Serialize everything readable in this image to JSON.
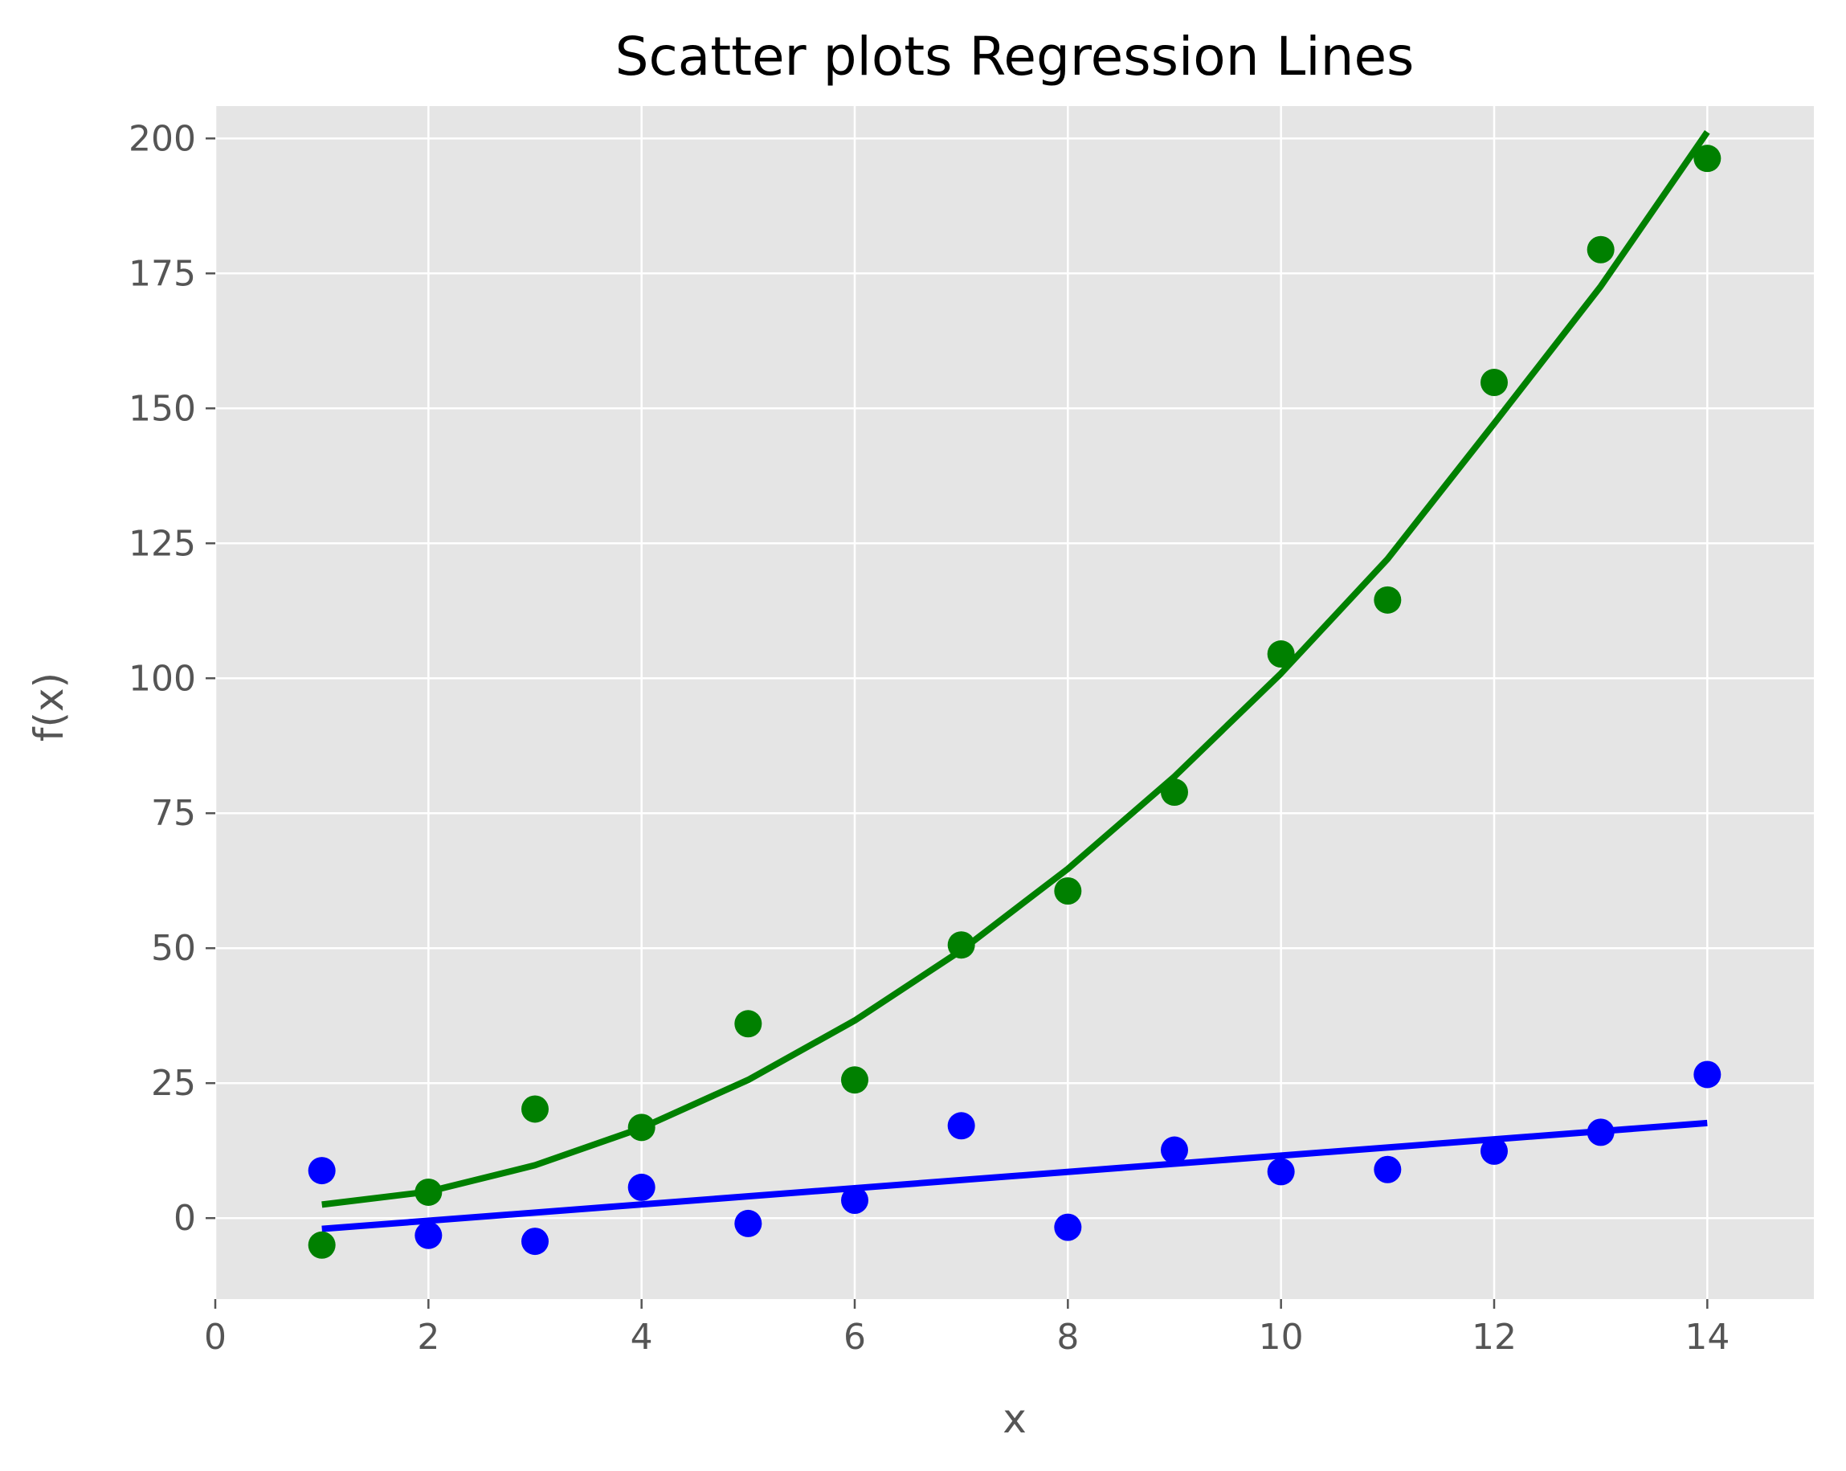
{
  "chart_data": {
    "type": "scatter",
    "title": "Scatter plots Regression Lines",
    "xlabel": "x",
    "ylabel": "f(x)",
    "xlim": [
      0,
      15
    ],
    "ylim": [
      -15,
      206
    ],
    "xticks": [
      0,
      2,
      4,
      6,
      8,
      10,
      12,
      14
    ],
    "yticks": [
      0,
      25,
      50,
      75,
      100,
      125,
      150,
      175,
      200
    ],
    "grid": true,
    "legend": "none",
    "colors": {
      "background": "#e5e5e5",
      "grid": "#ffffff",
      "green": "#008000",
      "blue": "#0000ff"
    },
    "series": [
      {
        "name": "green points",
        "kind": "scatter",
        "color": "#008000",
        "x": [
          1,
          2,
          3,
          4,
          5,
          6,
          7,
          8,
          9,
          10,
          11,
          12,
          13,
          14
        ],
        "y": [
          -5,
          4.8,
          20.2,
          16.8,
          36,
          25.6,
          50.6,
          60.6,
          78.9,
          104.5,
          114.5,
          154.8,
          179.4,
          196.3
        ]
      },
      {
        "name": "green regression",
        "kind": "line",
        "color": "#008000",
        "x": [
          1,
          2,
          3,
          4,
          5,
          6,
          7,
          8,
          9,
          10,
          11,
          12,
          13,
          14
        ],
        "y": [
          2.5,
          4.9,
          9.8,
          16.7,
          25.6,
          36.6,
          49.6,
          64.7,
          81.8,
          100.9,
          122.1,
          147.2,
          172.6,
          201.2
        ]
      },
      {
        "name": "blue points",
        "kind": "scatter",
        "color": "#0000ff",
        "x": [
          1,
          2,
          3,
          4,
          5,
          6,
          7,
          8,
          9,
          10,
          11,
          12,
          13,
          14
        ],
        "y": [
          8.8,
          -3.2,
          -4.3,
          5.7,
          -1,
          3.3,
          17.1,
          -1.7,
          12.6,
          8.6,
          9,
          12.4,
          15.9,
          26.6
        ]
      },
      {
        "name": "blue regression",
        "kind": "line",
        "color": "#0000ff",
        "x": [
          1,
          14
        ],
        "y": [
          -2,
          17.6
        ]
      }
    ]
  }
}
